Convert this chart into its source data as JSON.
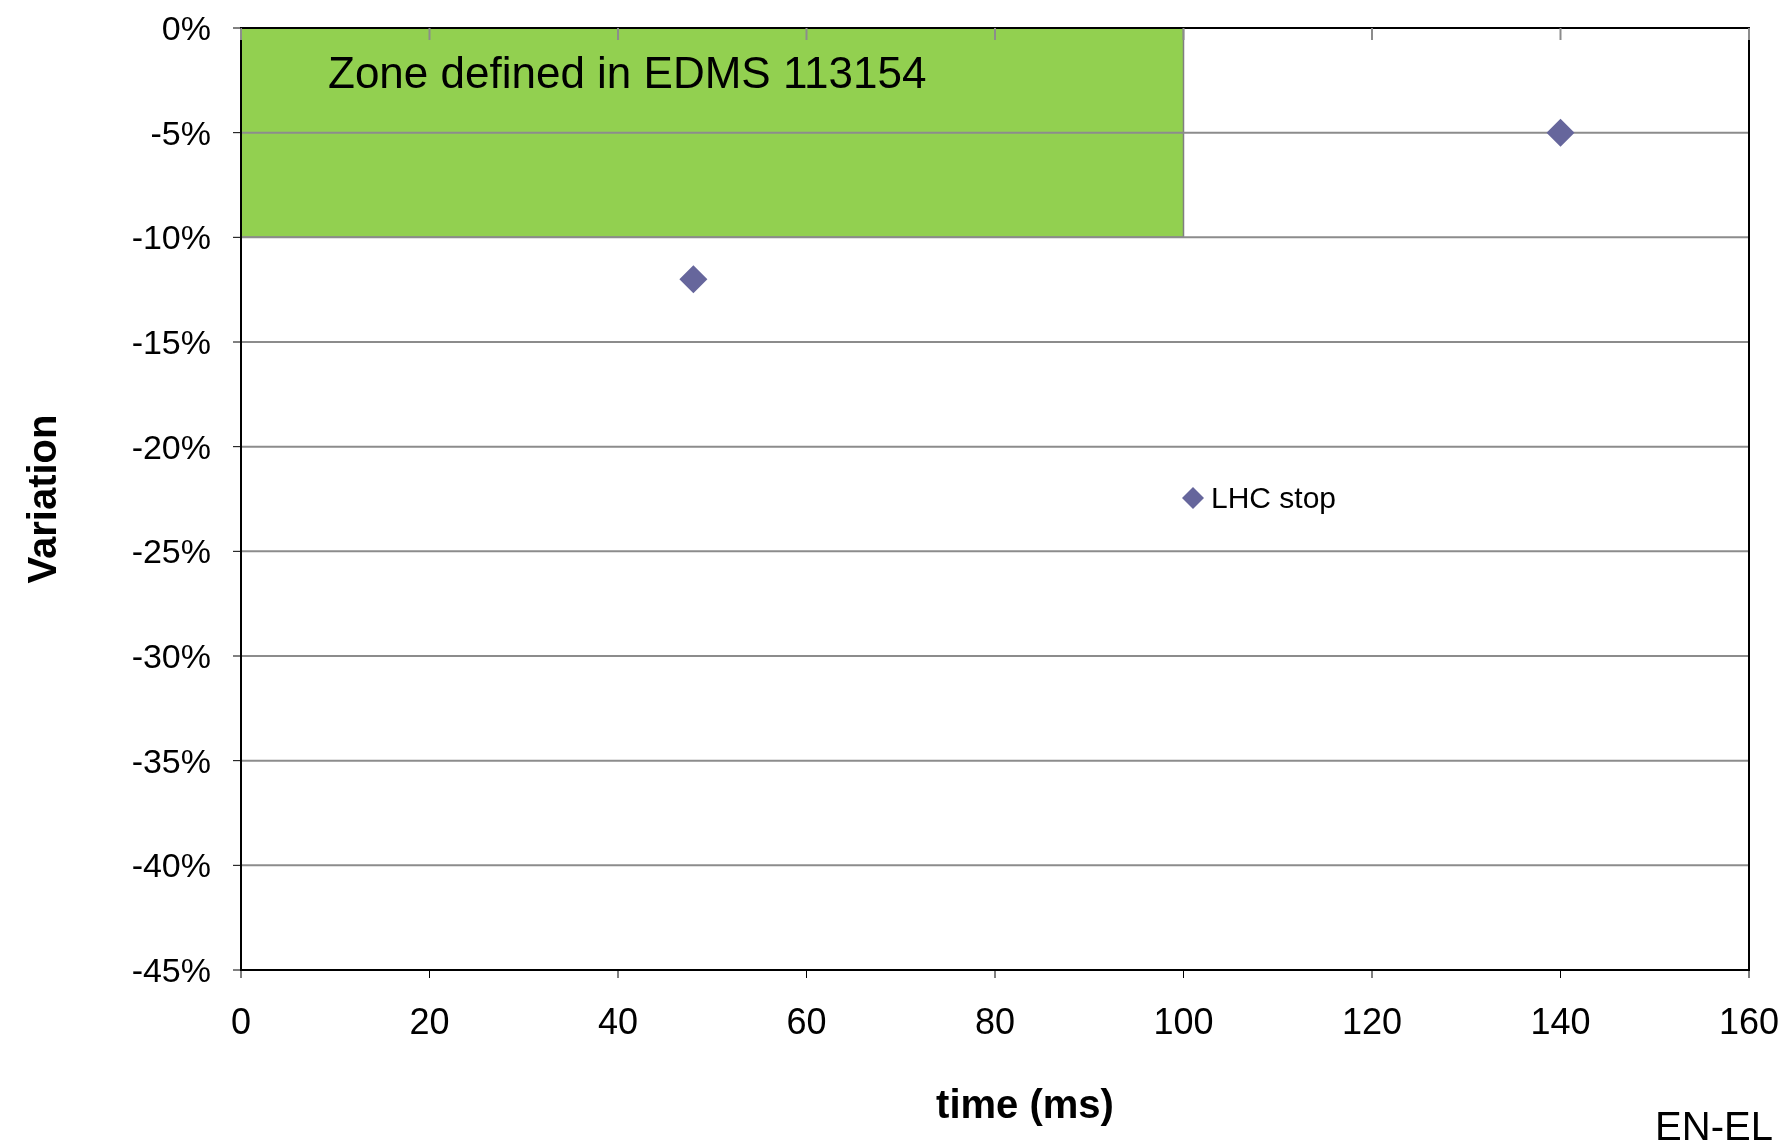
{
  "chart_data": {
    "type": "scatter",
    "xlabel": "time (ms)",
    "ylabel": "Variation",
    "xlim": [
      0,
      160
    ],
    "xticks": [
      0,
      20,
      40,
      60,
      80,
      100,
      120,
      140,
      160
    ],
    "ylim": [
      -45,
      0
    ],
    "yticks": [
      {
        "value": 0,
        "label": "0%"
      },
      {
        "value": -5,
        "label": "-5%"
      },
      {
        "value": -10,
        "label": "-10%"
      },
      {
        "value": -15,
        "label": "-15%"
      },
      {
        "value": -20,
        "label": "-20%"
      },
      {
        "value": -25,
        "label": "-25%"
      },
      {
        "value": -30,
        "label": "-30%"
      },
      {
        "value": -35,
        "label": "-35%"
      },
      {
        "value": -40,
        "label": "-40%"
      },
      {
        "value": -45,
        "label": "-45%"
      }
    ],
    "grid": "y",
    "legend": "center",
    "series": [
      {
        "type": "area",
        "color": "#92d050",
        "x": [
          0,
          100
        ],
        "values": [
          -10,
          -10
        ]
      },
      {
        "name": "LHC stop",
        "color": "#66669c",
        "marker": "diamond",
        "x": [
          48,
          140
        ],
        "values": [
          -12,
          -5
        ]
      }
    ],
    "annotations": [
      "Zone defined in EDMS 113154",
      "EN-EL"
    ]
  }
}
